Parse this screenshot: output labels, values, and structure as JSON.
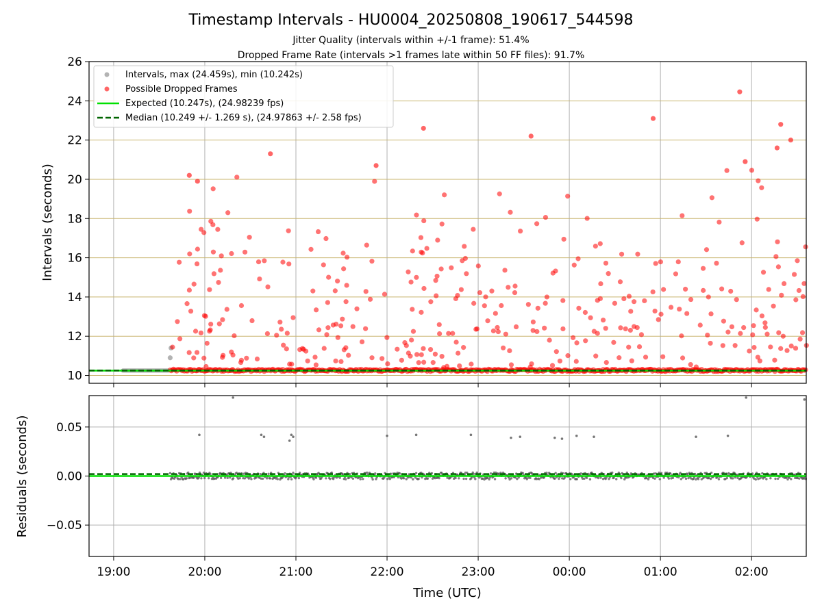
{
  "title": "Timestamp Intervals - HU0004_20250808_190617_544598",
  "subtitle_1": "Jitter Quality (intervals within +/-1 frame): 51.4%",
  "subtitle_2": "Dropped Frame Rate (intervals >1 frames late within 50 FF files): 91.7%",
  "colors": {
    "intervals": "#808080",
    "dropped": "#ff0000",
    "expected": "#00e000",
    "median": "#006400",
    "interval_grid": "#c8b46e",
    "grid": "#b0b0b0",
    "residual_points": "#555555"
  },
  "chart_data": [
    {
      "type": "scatter",
      "panel": "top",
      "ylabel": "Intervals (seconds)",
      "ylim": [
        9.6,
        26
      ],
      "yticks": [
        10,
        12,
        14,
        16,
        18,
        20,
        22,
        24,
        26
      ],
      "ytick_labels": [
        "10",
        "12",
        "14",
        "16",
        "18",
        "20",
        "22",
        "24",
        "26"
      ],
      "xlim_hours": [
        18.73,
        26.6
      ],
      "grid": true,
      "legend": {
        "placement": "top-left",
        "entries": [
          "Intervals, max (24.459s), min (10.242s)",
          "Possible Dropped Frames",
          "Expected (10.247s), (24.98239 fps)",
          "Median (10.249 +/- 1.269 s), (24.97863 +/- 2.58 fps)"
        ]
      },
      "expected_line": 10.247,
      "median_line": 10.249,
      "intervals_max": 24.459,
      "intervals_min": 10.242,
      "dropped_region_hours": [
        19.62,
        26.6
      ],
      "baseline_hours": [
        18.73,
        26.6
      ],
      "dropped_notable": [
        {
          "x": 19.83,
          "y": 20.2
        },
        {
          "x": 19.92,
          "y": 19.9
        },
        {
          "x": 20.72,
          "y": 21.3
        },
        {
          "x": 21.88,
          "y": 20.7
        },
        {
          "x": 22.4,
          "y": 22.6
        },
        {
          "x": 23.58,
          "y": 22.2
        },
        {
          "x": 24.92,
          "y": 23.1
        },
        {
          "x": 25.87,
          "y": 24.459
        },
        {
          "x": 26.32,
          "y": 22.8
        },
        {
          "x": 26.28,
          "y": 21.6
        },
        {
          "x": 26.43,
          "y": 22.0
        },
        {
          "x": 25.93,
          "y": 20.9
        }
      ],
      "gray_points": [
        {
          "x": 19.62,
          "y": 10.9
        },
        {
          "x": 19.63,
          "y": 11.4
        }
      ]
    },
    {
      "type": "scatter",
      "panel": "bottom",
      "ylabel": "Residuals (seconds)",
      "xlabel": "Time (UTC)",
      "ylim": [
        -0.082,
        0.082
      ],
      "yticks": [
        -0.05,
        0.0,
        0.05
      ],
      "ytick_labels": [
        "−0.05",
        "0.00",
        "0.05"
      ],
      "xlim_hours": [
        18.73,
        26.6
      ],
      "xticks_hours": [
        19,
        20,
        21,
        22,
        23,
        24,
        25,
        26
      ],
      "xtick_labels": [
        "19:00",
        "20:00",
        "21:00",
        "22:00",
        "23:00",
        "00:00",
        "01:00",
        "02:00"
      ],
      "grid": true,
      "expected_line": 0.0,
      "median_line": 0.002,
      "outliers": [
        {
          "x": 19.94,
          "y": 0.042
        },
        {
          "x": 20.62,
          "y": 0.042
        },
        {
          "x": 20.65,
          "y": 0.04
        },
        {
          "x": 20.95,
          "y": 0.042
        },
        {
          "x": 20.97,
          "y": 0.04
        },
        {
          "x": 20.93,
          "y": 0.036
        },
        {
          "x": 22.0,
          "y": 0.041
        },
        {
          "x": 22.32,
          "y": 0.042
        },
        {
          "x": 22.92,
          "y": 0.042
        },
        {
          "x": 23.36,
          "y": 0.039
        },
        {
          "x": 23.46,
          "y": 0.04
        },
        {
          "x": 23.84,
          "y": 0.039
        },
        {
          "x": 23.92,
          "y": 0.038
        },
        {
          "x": 24.08,
          "y": 0.041
        },
        {
          "x": 24.27,
          "y": 0.04
        },
        {
          "x": 25.39,
          "y": 0.04
        },
        {
          "x": 25.74,
          "y": 0.041
        },
        {
          "x": 20.31,
          "y": 0.08
        },
        {
          "x": 25.94,
          "y": 0.08
        },
        {
          "x": 26.58,
          "y": 0.078
        }
      ]
    }
  ]
}
